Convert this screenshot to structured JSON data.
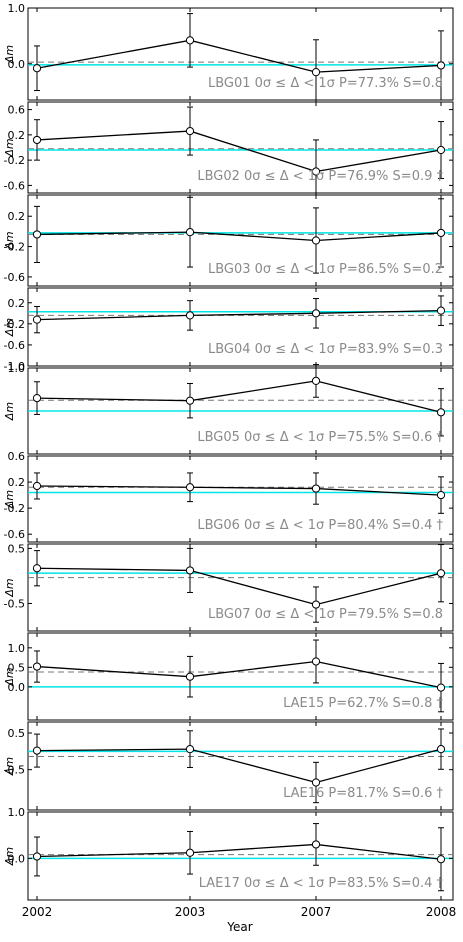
{
  "figure": {
    "x_tick_labels": [
      "2002",
      "2003",
      "2007",
      "2008"
    ],
    "xlabel": "Year",
    "ylabel": "Δm",
    "colors": {
      "data": "#000000",
      "cyan": "#00e5e5",
      "dashed": "#777777",
      "label": "#8a8a8a",
      "axes": "#000000"
    }
  },
  "chart_data": [
    {
      "type": "line",
      "name": "LBG01",
      "x": [
        "2002",
        "2003",
        "2007",
        "2008"
      ],
      "y": [
        -0.08,
        0.42,
        -0.15,
        -0.03
      ],
      "err": [
        0.4,
        0.48,
        0.58,
        0.62
      ],
      "ylim": [
        -0.65,
        1.0
      ],
      "yticks": [
        0.0,
        1.0
      ],
      "ytick_labels": [
        "0.0",
        "1.0"
      ],
      "cyan_level": -0.02,
      "dashed_level": 0.03,
      "range_text": "0σ ≤ Δ < 1σ",
      "stats_text": "P=77.3% S=0.8",
      "dagger": ""
    },
    {
      "type": "line",
      "name": "LBG02",
      "x": [
        "2002",
        "2003",
        "2007",
        "2008"
      ],
      "y": [
        0.12,
        0.26,
        -0.38,
        -0.04
      ],
      "err": [
        0.32,
        0.38,
        0.5,
        0.45
      ],
      "ylim": [
        -0.72,
        0.72
      ],
      "yticks": [
        -0.6,
        -0.2,
        0.2,
        0.6
      ],
      "ytick_labels": [
        "-0.6",
        "-0.2",
        "0.2",
        "0.6"
      ],
      "cyan_level": -0.04,
      "dashed_level": -0.02,
      "range_text": "0σ ≤ Δ < 1σ",
      "stats_text": "P=76.9% S=0.9",
      "dagger": "†"
    },
    {
      "type": "line",
      "name": "LBG03",
      "x": [
        "2002",
        "2003",
        "2007",
        "2008"
      ],
      "y": [
        -0.04,
        -0.01,
        -0.12,
        -0.02
      ],
      "err": [
        0.37,
        0.46,
        0.43,
        0.45
      ],
      "ylim": [
        -0.72,
        0.48
      ],
      "yticks": [
        -0.6,
        -0.2,
        0.2
      ],
      "ytick_labels": [
        "-0.6",
        "-0.2",
        "0.2"
      ],
      "cyan_level": -0.02,
      "dashed_level": -0.04,
      "range_text": "0σ ≤ Δ < 1σ",
      "stats_text": "P=86.5% S=0.2",
      "dagger": ""
    },
    {
      "type": "line",
      "name": "LBG04",
      "x": [
        "2002",
        "2003",
        "2007",
        "2008"
      ],
      "y": [
        -0.12,
        -0.04,
        0.0,
        0.05
      ],
      "err": [
        0.25,
        0.28,
        0.28,
        0.28
      ],
      "ylim": [
        -1.0,
        0.48
      ],
      "yticks": [
        -1.0,
        -0.6,
        -0.2,
        0.2
      ],
      "ytick_labels": [
        "-1.0",
        "-0.6",
        "-0.2",
        "0.2"
      ],
      "cyan_level": 0.03,
      "dashed_level": -0.04,
      "range_text": "0σ ≤ Δ < 1σ",
      "stats_text": "P=83.9% S=0.3",
      "dagger": ""
    },
    {
      "type": "line",
      "name": "LBG05",
      "x": [
        "2002",
        "2003",
        "2007",
        "2008"
      ],
      "y": [
        0.3,
        0.24,
        0.7,
        -0.03
      ],
      "err": [
        0.38,
        0.4,
        0.38,
        0.55
      ],
      "ylim": [
        -1.0,
        1.0
      ],
      "yticks": [
        1.0
      ],
      "ytick_labels": [
        "1.0"
      ],
      "cyan_level": 0.0,
      "dashed_level": 0.25,
      "range_text": "0σ ≤ Δ < 1σ",
      "stats_text": "P=75.5% S=0.6",
      "dagger": "†"
    },
    {
      "type": "line",
      "name": "LBG06",
      "x": [
        "2002",
        "2003",
        "2007",
        "2008"
      ],
      "y": [
        0.14,
        0.12,
        0.1,
        0.0
      ],
      "err": [
        0.2,
        0.22,
        0.24,
        0.28
      ],
      "ylim": [
        -0.72,
        0.6
      ],
      "yticks": [
        -0.6,
        -0.2,
        0.2,
        0.6
      ],
      "ytick_labels": [
        "-0.6",
        "-0.2",
        "0.2",
        "0.6"
      ],
      "cyan_level": 0.04,
      "dashed_level": 0.12,
      "range_text": "0σ ≤ Δ < 1σ",
      "stats_text": "P=80.4% S=0.4",
      "dagger": "†"
    },
    {
      "type": "line",
      "name": "LBG07",
      "x": [
        "2002",
        "2003",
        "2007",
        "2008"
      ],
      "y": [
        0.14,
        0.1,
        -0.52,
        0.05
      ],
      "err": [
        0.32,
        0.4,
        0.32,
        0.52
      ],
      "ylim": [
        -1.0,
        0.58
      ],
      "yticks": [
        -0.5,
        0.5
      ],
      "ytick_labels": [
        "-0.5",
        "0.5"
      ],
      "cyan_level": 0.05,
      "dashed_level": -0.03,
      "range_text": "0σ ≤ Δ < 1σ",
      "stats_text": "P=79.5% S=0.8",
      "dagger": ""
    },
    {
      "type": "line",
      "name": "LAE15",
      "x": [
        "2002",
        "2003",
        "2007",
        "2008"
      ],
      "y": [
        0.52,
        0.26,
        0.65,
        -0.02
      ],
      "err": [
        0.4,
        0.52,
        0.55,
        0.62
      ],
      "ylim": [
        -0.85,
        1.38
      ],
      "yticks": [
        0.0,
        0.5,
        1.0
      ],
      "ytick_labels": [
        "0.0",
        "0.5",
        "1.0"
      ],
      "cyan_level": 0.0,
      "dashed_level": 0.38,
      "range_text": "",
      "stats_text": "P=62.7% S=0.8",
      "dagger": "†"
    },
    {
      "type": "line",
      "name": "LAE16",
      "x": [
        "2002",
        "2003",
        "2007",
        "2008"
      ],
      "y": [
        0.02,
        0.06,
        -0.85,
        0.06
      ],
      "err": [
        0.45,
        0.5,
        0.55,
        0.55
      ],
      "ylim": [
        -1.6,
        0.8
      ],
      "yticks": [
        -0.5,
        0.5
      ],
      "ytick_labels": [
        "-0.5",
        "0.5"
      ],
      "cyan_level": 0.0,
      "dashed_level": -0.14,
      "range_text": "",
      "stats_text": "P=81.7% S=0.6",
      "dagger": "†"
    },
    {
      "type": "line",
      "name": "LAE17",
      "x": [
        "2002",
        "2003",
        "2007",
        "2008"
      ],
      "y": [
        0.04,
        0.12,
        0.3,
        -0.02
      ],
      "err": [
        0.42,
        0.46,
        0.45,
        0.68
      ],
      "ylim": [
        -0.9,
        1.0
      ],
      "yticks": [
        0.0,
        1.0
      ],
      "ytick_labels": [
        "0.0",
        "1.0"
      ],
      "cyan_level": 0.0,
      "dashed_level": 0.08,
      "range_text": "0σ ≤ Δ < 1σ",
      "stats_text": "P=83.5% S=0.4",
      "dagger": "†"
    }
  ]
}
